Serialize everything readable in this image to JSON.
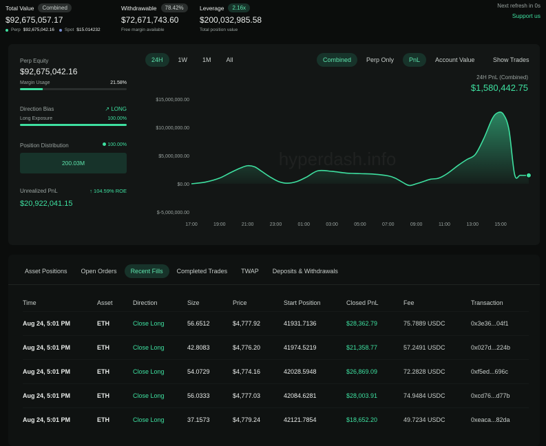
{
  "summary": {
    "total_value_label": "Total Value",
    "total_value_badge": "Combined",
    "total_value": "$92,675,057.17",
    "perp_label": "Perp",
    "perp_value": "$92,675,042.16",
    "spot_label": "Spot",
    "spot_value": "$15.014232",
    "withdrawable_label": "Withdrawable",
    "withdrawable_badge": "78.42%",
    "withdrawable_value": "$72,671,743.60",
    "withdrawable_sub": "Free margin available",
    "leverage_label": "Leverage",
    "leverage_badge": "2.16x",
    "leverage_value": "$200,032,985.58",
    "leverage_sub": "Total position value",
    "refresh_text": "Next refresh in 0s",
    "support_link": "Support us"
  },
  "left_panel": {
    "perp_equity_label": "Perp Equity",
    "perp_equity_value": "$92,675,042.16",
    "margin_usage_label": "Margin Usage",
    "margin_usage_value": "21.58%",
    "margin_usage_fraction": 0.2158,
    "direction_bias_label": "Direction Bias",
    "direction_bias_value": "LONG",
    "long_exposure_label": "Long Exposure",
    "long_exposure_value": "100.00%",
    "long_exposure_fraction": 1.0,
    "position_distribution_label": "Position Distribution",
    "position_distribution_value": "100.00%",
    "distribution_box_value": "200.03M",
    "unrealized_pnl_label": "Unrealized PnL",
    "unrealized_pnl_roe": "104.59% ROE",
    "unrealized_pnl_value": "$20,922,041.15"
  },
  "chart_controls": {
    "time_tabs": [
      "24H",
      "1W",
      "1M",
      "All"
    ],
    "time_active": 0,
    "mode_tabs": [
      "Combined",
      "Perp Only"
    ],
    "mode_active": 0,
    "metric_tabs": [
      "PnL",
      "Account Value"
    ],
    "metric_active": 0,
    "show_trades_label": "Show Trades",
    "pnl_caption": "24H PnL (Combined)",
    "pnl_value": "$1,580,442.75",
    "watermark": "hyperdash.info"
  },
  "chart_data": {
    "type": "area",
    "title": "",
    "xlabel": "",
    "ylabel": "",
    "y_ticks": [
      15000000,
      10000000,
      5000000,
      0,
      -5000000
    ],
    "y_tick_labels": [
      "$15,000,000.00",
      "$10,000,000.00",
      "$5,000,000.00",
      "$0.00",
      "$-5,000,000.00"
    ],
    "x_tick_labels": [
      "17:00",
      "19:00",
      "21:00",
      "23:00",
      "01:00",
      "03:00",
      "05:00",
      "07:00",
      "09:00",
      "11:00",
      "13:00",
      "15:00"
    ],
    "ylim": [
      -5000000,
      15000000
    ],
    "x_range_hours": [
      17,
      41.2
    ],
    "grid": false,
    "series": [
      {
        "x": [
          17.0,
          18.0,
          19.0,
          19.8,
          20.5,
          21.0,
          21.5,
          22.0,
          22.6,
          23.2,
          23.8,
          24.5,
          25.2,
          26.0,
          27.0,
          28.0,
          29.0,
          30.0,
          31.0,
          31.5,
          32.0,
          32.5,
          33.0,
          33.5,
          34.0,
          34.6,
          35.2,
          36.0,
          36.6,
          37.2,
          37.8,
          38.4,
          38.8,
          39.2,
          39.6,
          40.0,
          40.4,
          41.0
        ],
        "y": [
          0,
          300000,
          1000000,
          2000000,
          2800000,
          3200000,
          3000000,
          2200000,
          1200000,
          400000,
          100000,
          400000,
          1200000,
          2300000,
          2200000,
          1900000,
          1800000,
          1700000,
          1400000,
          1000000,
          300000,
          -300000,
          0,
          400000,
          800000,
          1000000,
          1800000,
          3300000,
          4300000,
          5200000,
          8000000,
          11500000,
          12600000,
          12300000,
          9500000,
          1600000,
          1500000,
          1500000
        ]
      }
    ],
    "line_color": "#3ee0a0"
  },
  "tabs": {
    "items": [
      "Asset Positions",
      "Open Orders",
      "Recent Fills",
      "Completed Trades",
      "TWAP",
      "Deposits & Withdrawals"
    ],
    "active": 2
  },
  "fills_table": {
    "columns": [
      "Time",
      "Asset",
      "Direction",
      "Size",
      "Price",
      "Start Position",
      "Closed PnL",
      "Fee",
      "Transaction"
    ],
    "rows": [
      [
        "Aug 24, 5:01 PM",
        "ETH",
        "Close Long",
        "56.6512",
        "$4,777.92",
        "41931.7136",
        "$28,362.79",
        "75.7889 USDC",
        "0x3e36...04f1"
      ],
      [
        "Aug 24, 5:01 PM",
        "ETH",
        "Close Long",
        "42.8083",
        "$4,776.20",
        "41974.5219",
        "$21,358.77",
        "57.2491 USDC",
        "0x027d...224b"
      ],
      [
        "Aug 24, 5:01 PM",
        "ETH",
        "Close Long",
        "54.0729",
        "$4,774.16",
        "42028.5948",
        "$26,869.09",
        "72.2828 USDC",
        "0xf5ed...696c"
      ],
      [
        "Aug 24, 5:01 PM",
        "ETH",
        "Close Long",
        "56.0333",
        "$4,777.03",
        "42084.6281",
        "$28,003.91",
        "74.9484 USDC",
        "0xcd76...d77b"
      ],
      [
        "Aug 24, 5:01 PM",
        "ETH",
        "Close Long",
        "37.1573",
        "$4,779.24",
        "42121.7854",
        "$18,652.20",
        "49.7234 USDC",
        "0xeaca...82da"
      ]
    ]
  }
}
